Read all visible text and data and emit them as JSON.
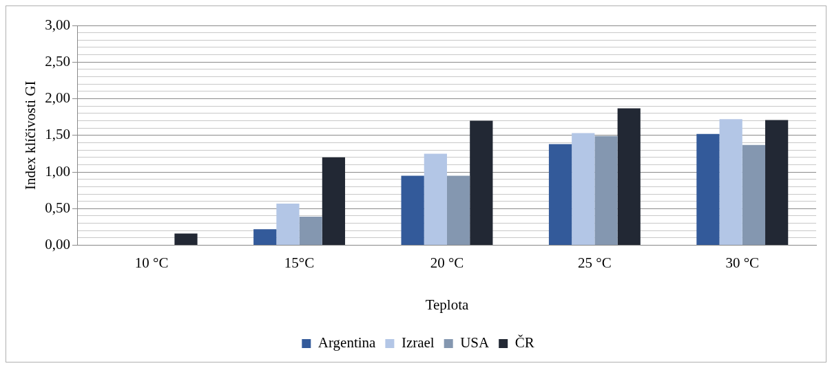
{
  "chart_data": {
    "type": "bar",
    "xlabel": "Teplota",
    "ylabel": "Index klíčivosti GI",
    "categories": [
      "10 °C",
      "15°C",
      "20 °C",
      "25 °C",
      "30 °C"
    ],
    "series": [
      {
        "name": "Argentina",
        "color": "#335a9a",
        "values": [
          0,
          0.22,
          0.95,
          1.38,
          1.52
        ]
      },
      {
        "name": "Izrael",
        "color": "#b3c6e6",
        "values": [
          0,
          0.57,
          1.25,
          1.53,
          1.72
        ]
      },
      {
        "name": "USA",
        "color": "#8497b0",
        "values": [
          0,
          0.39,
          0.95,
          1.49,
          1.37
        ]
      },
      {
        "name": "ČR",
        "color": "#222834",
        "values": [
          0.16,
          1.2,
          1.7,
          1.87,
          1.71
        ]
      }
    ],
    "ylim": [
      0,
      3
    ],
    "yticks": [
      {
        "value": 0,
        "label": "0,00"
      },
      {
        "value": 0.1,
        "label": null
      },
      {
        "value": 0.2,
        "label": null
      },
      {
        "value": 0.3,
        "label": null
      },
      {
        "value": 0.4,
        "label": null
      },
      {
        "value": 0.5,
        "label": "0,50"
      },
      {
        "value": 0.6,
        "label": null
      },
      {
        "value": 0.7,
        "label": null
      },
      {
        "value": 0.8,
        "label": null
      },
      {
        "value": 0.9,
        "label": null
      },
      {
        "value": 1,
        "label": "1,00"
      },
      {
        "value": 1.1,
        "label": null
      },
      {
        "value": 1.2,
        "label": null
      },
      {
        "value": 1.3,
        "label": null
      },
      {
        "value": 1.4,
        "label": null
      },
      {
        "value": 1.5,
        "label": "1,50"
      },
      {
        "value": 1.6,
        "label": null
      },
      {
        "value": 1.7,
        "label": null
      },
      {
        "value": 1.8,
        "label": null
      },
      {
        "value": 1.9,
        "label": null
      },
      {
        "value": 2,
        "label": "2,00"
      },
      {
        "value": 2.1,
        "label": null
      },
      {
        "value": 2.2,
        "label": null
      },
      {
        "value": 2.3,
        "label": null
      },
      {
        "value": 2.4,
        "label": null
      },
      {
        "value": 2.5,
        "label": "2,50"
      },
      {
        "value": 2.6,
        "label": null
      },
      {
        "value": 2.7,
        "label": null
      },
      {
        "value": 2.8,
        "label": null
      },
      {
        "value": 2.9,
        "label": null
      },
      {
        "value": 3,
        "label": "3,00"
      }
    ],
    "grid": "y",
    "legend": "bottom"
  }
}
